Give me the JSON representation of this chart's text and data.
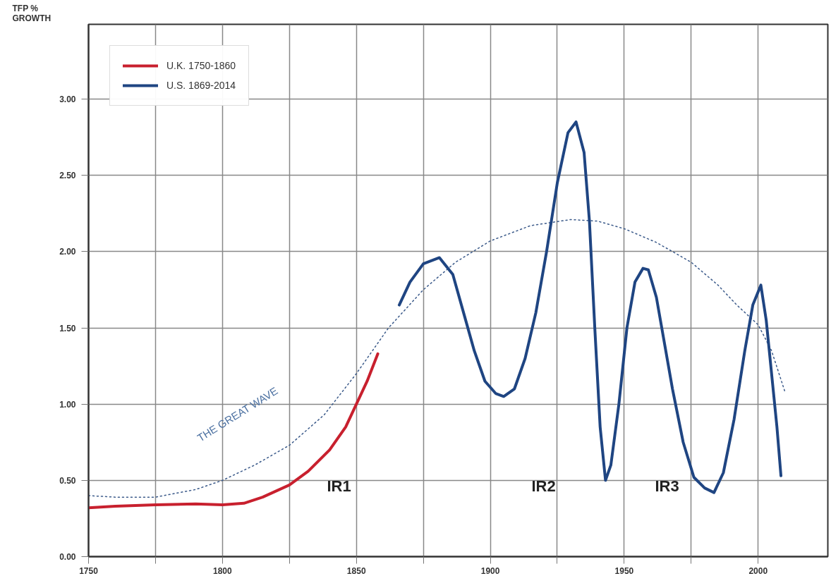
{
  "chart_data": {
    "type": "line",
    "ylabel": "TFP %\nGROWTH",
    "xlim": [
      1750,
      2026
    ],
    "ylim": [
      0,
      3.49
    ],
    "xticks": [
      1750,
      {
        "value": 1775,
        "label": null
      },
      1800,
      {
        "value": 1825,
        "label": null
      },
      1850,
      {
        "value": 1875,
        "label": null
      },
      1900,
      {
        "value": 1925,
        "label": null
      },
      1950,
      {
        "value": 1975,
        "label": null
      },
      2000
    ],
    "yticks": [
      {
        "value": 0,
        "label": "0.00"
      },
      {
        "value": 0.5,
        "label": "0.50"
      },
      {
        "value": 1,
        "label": "1.00"
      },
      {
        "value": 1.5,
        "label": "1.50"
      },
      {
        "value": 2,
        "label": "2.00"
      },
      {
        "value": 2.5,
        "label": "2.50"
      },
      {
        "value": 3,
        "label": "3.00"
      }
    ],
    "grid": true,
    "legend": "top left",
    "marker": "none",
    "series": [
      {
        "color": "#3b5a8a",
        "line_style": "dotted",
        "x": [
          1750,
          1760,
          1775,
          1790,
          1800,
          1812,
          1825,
          1838,
          1850,
          1862,
          1875,
          1887,
          1900,
          1915,
          1930,
          1940,
          1950,
          1962,
          1975,
          1985,
          1992,
          2000,
          2005,
          2010
        ],
        "values": [
          0.4,
          0.39,
          0.39,
          0.44,
          0.5,
          0.6,
          0.73,
          0.93,
          1.2,
          1.5,
          1.75,
          1.93,
          2.07,
          2.17,
          2.21,
          2.2,
          2.15,
          2.06,
          1.93,
          1.78,
          1.65,
          1.52,
          1.35,
          1.08
        ]
      },
      {
        "name": "U.K. 1750-1860",
        "color": "#c8202e",
        "line_style": "solid",
        "x": [
          1750,
          1760,
          1775,
          1790,
          1800,
          1808,
          1815,
          1825,
          1832,
          1840,
          1846,
          1850,
          1854,
          1858
        ],
        "values": [
          0.32,
          0.33,
          0.34,
          0.345,
          0.34,
          0.35,
          0.39,
          0.47,
          0.56,
          0.7,
          0.85,
          1.0,
          1.15,
          1.33
        ]
      },
      {
        "name": "U.S. 1869-2014",
        "color": "#1f4582",
        "line_style": "solid",
        "x": [
          1866,
          1870,
          1875,
          1881,
          1886,
          1890,
          1894,
          1898,
          1902,
          1905,
          1909,
          1913,
          1917,
          1921,
          1925,
          1929,
          1932,
          1935,
          1937,
          1939,
          1941,
          1943,
          1945,
          1948,
          1951,
          1954,
          1957,
          1959,
          1962,
          1965,
          1968,
          1972,
          1976,
          1980,
          1983.5,
          1987,
          1991,
          1995,
          1998,
          2001,
          2003,
          2005,
          2007,
          2008.5
        ],
        "values": [
          1.65,
          1.8,
          1.92,
          1.96,
          1.85,
          1.6,
          1.35,
          1.15,
          1.07,
          1.05,
          1.1,
          1.3,
          1.6,
          2.0,
          2.45,
          2.78,
          2.85,
          2.65,
          2.2,
          1.5,
          0.85,
          0.5,
          0.6,
          1.0,
          1.5,
          1.8,
          1.89,
          1.88,
          1.7,
          1.4,
          1.1,
          0.75,
          0.52,
          0.45,
          0.42,
          0.55,
          0.9,
          1.35,
          1.65,
          1.78,
          1.55,
          1.2,
          0.85,
          0.53
        ]
      }
    ],
    "annotations": [
      "THE GREAT WAVE",
      "IR1",
      "IR2",
      "IR3"
    ]
  }
}
